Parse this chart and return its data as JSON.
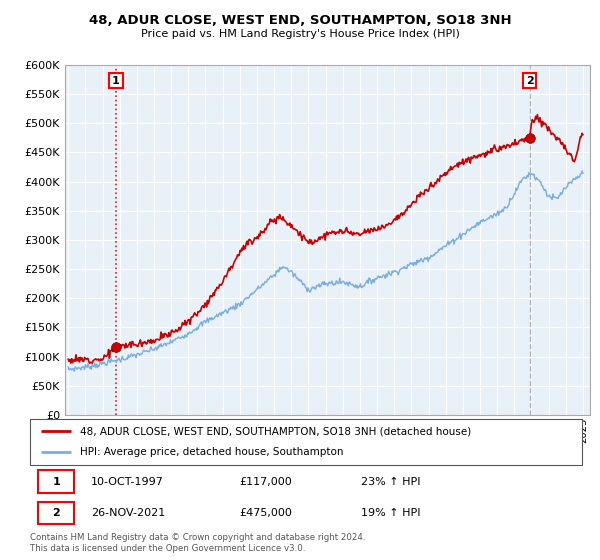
{
  "title": "48, ADUR CLOSE, WEST END, SOUTHAMPTON, SO18 3NH",
  "subtitle": "Price paid vs. HM Land Registry's House Price Index (HPI)",
  "ylim": [
    0,
    600000
  ],
  "yticks": [
    0,
    50000,
    100000,
    150000,
    200000,
    250000,
    300000,
    350000,
    400000,
    450000,
    500000,
    550000,
    600000
  ],
  "sale1_date_num": 1997.78,
  "sale1_price": 117000,
  "sale1_label": "1",
  "sale2_date_num": 2021.9,
  "sale2_price": 475000,
  "sale2_label": "2",
  "legend_line1": "48, ADUR CLOSE, WEST END, SOUTHAMPTON, SO18 3NH (detached house)",
  "legend_line2": "HPI: Average price, detached house, Southampton",
  "table_row1": [
    "1",
    "10-OCT-1997",
    "£117,000",
    "23% ↑ HPI"
  ],
  "table_row2": [
    "2",
    "26-NOV-2021",
    "£475,000",
    "19% ↑ HPI"
  ],
  "footnote": "Contains HM Land Registry data © Crown copyright and database right 2024.\nThis data is licensed under the Open Government Licence v3.0.",
  "price_color": "#cc0000",
  "hpi_color": "#7aade0",
  "chart_bg": "#e8f0f8",
  "grid_color": "#ffffff",
  "fig_bg": "#ffffff"
}
